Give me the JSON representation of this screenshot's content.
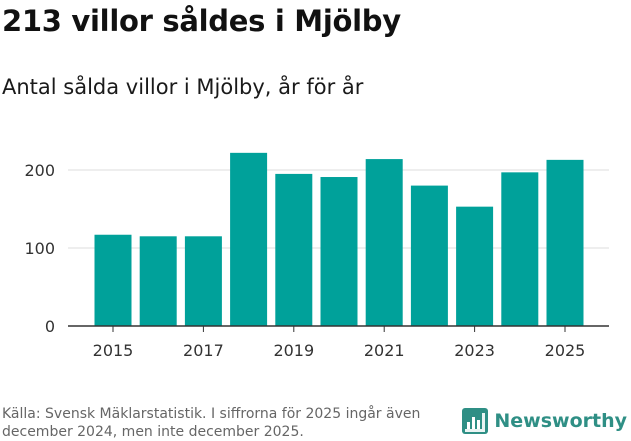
{
  "header": {
    "title": "213 villor såldes i Mjölby",
    "subtitle": "Antal sålda villor i Mjölby, år för år"
  },
  "footer": {
    "source": "Källa: Svensk Mäklarstatistik. I siffrorna för 2025 ingår även december 2024, men inte december 2025.",
    "brand": "Newsworthy"
  },
  "colors": {
    "bar": "#00a19a",
    "grid": "#dddddd",
    "axis": "#333333",
    "brand": "#2f8f85"
  },
  "chart_data": {
    "type": "bar",
    "title": "",
    "xlabel": "",
    "ylabel": "",
    "categories": [
      2015,
      2016,
      2017,
      2018,
      2019,
      2020,
      2021,
      2022,
      2023,
      2024,
      2025
    ],
    "values": [
      117,
      115,
      115,
      222,
      195,
      191,
      214,
      180,
      153,
      197,
      213
    ],
    "x_tick_labels": [
      "2015",
      "2017",
      "2019",
      "2021",
      "2023",
      "2025"
    ],
    "y_ticks": [
      0,
      100,
      200
    ],
    "ylim": [
      0,
      250
    ],
    "grid": true
  }
}
